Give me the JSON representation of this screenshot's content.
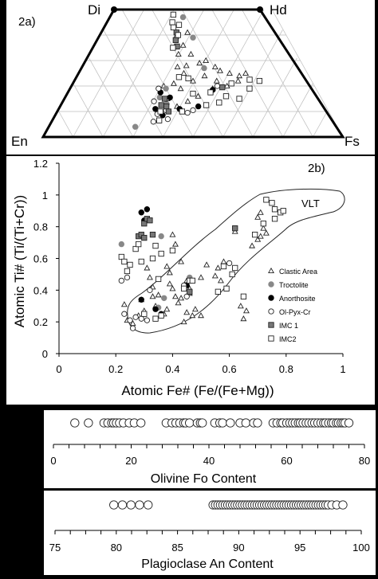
{
  "chart_data": [
    {
      "type": "scatter",
      "title": "2a)",
      "ternary_vertices": {
        "top_left": "Di",
        "top_right": "Hd",
        "bottom_left": "En",
        "bottom_right": "Fs"
      },
      "grid": true,
      "note": "Pyroxene quadrilateral; points given as Fe# (x) and Wo-axis fraction (y, 0 = En-Fs base, 1 = Di-Hd top)",
      "series": [
        {
          "name": "Clastic Area",
          "marker": "triangle",
          "points": [
            [
              0.45,
              0.72
            ],
            [
              0.49,
              0.65
            ],
            [
              0.53,
              0.58
            ],
            [
              0.56,
              0.6
            ],
            [
              0.6,
              0.55
            ],
            [
              0.43,
              0.55
            ],
            [
              0.46,
              0.5
            ],
            [
              0.42,
              0.42
            ],
            [
              0.45,
              0.38
            ],
            [
              0.62,
              0.52
            ],
            [
              0.66,
              0.5
            ],
            [
              0.7,
              0.48
            ],
            [
              0.73,
              0.5
            ],
            [
              0.69,
              0.44
            ],
            [
              0.64,
              0.4
            ],
            [
              0.58,
              0.38
            ],
            [
              0.52,
              0.32
            ],
            [
              0.48,
              0.28
            ],
            [
              0.44,
              0.24
            ],
            [
              0.4,
              0.3
            ],
            [
              0.38,
              0.4
            ],
            [
              0.55,
              0.48
            ],
            [
              0.6,
              0.44
            ],
            [
              0.5,
              0.44
            ],
            [
              0.47,
              0.56
            ],
            [
              0.43,
              0.65
            ],
            [
              0.41,
              0.79
            ],
            [
              0.47,
              0.82
            ]
          ]
        },
        {
          "name": "Troctolite",
          "marker": "grey-circle",
          "points": [
            [
              0.3,
              0.08
            ],
            [
              0.44,
              0.94
            ],
            [
              0.5,
              0.78
            ],
            [
              0.39,
              0.38
            ],
            [
              0.37,
              0.31
            ],
            [
              0.55,
              0.54
            ],
            [
              0.4,
              0.26
            ]
          ]
        },
        {
          "name": "Anorthosite",
          "marker": "filled-circle",
          "points": [
            [
              0.36,
              0.22
            ],
            [
              0.39,
              0.17
            ],
            [
              0.45,
              0.22
            ],
            [
              0.52,
              0.24
            ],
            [
              0.37,
              0.35
            ],
            [
              0.58,
              0.37
            ],
            [
              0.41,
              0.31
            ]
          ]
        },
        {
          "name": "Ol-Pyx-Cr",
          "marker": "open-circle",
          "points": [
            [
              0.35,
              0.28
            ],
            [
              0.37,
              0.18
            ],
            [
              0.4,
              0.21
            ],
            [
              0.36,
              0.38
            ],
            [
              0.48,
              0.19
            ],
            [
              0.6,
              0.4
            ],
            [
              0.36,
              0.12
            ],
            [
              0.5,
              0.21
            ],
            [
              0.41,
              0.14
            ]
          ]
        },
        {
          "name": "IMC 1",
          "marker": "grey-square",
          "points": [
            [
              0.41,
              0.82
            ],
            [
              0.41,
              0.76
            ],
            [
              0.42,
              0.71
            ],
            [
              0.39,
              0.3
            ],
            [
              0.4,
              0.24
            ],
            [
              0.41,
              0.2
            ],
            [
              0.38,
              0.25
            ],
            [
              0.62,
              0.39
            ]
          ]
        },
        {
          "name": "IMC2",
          "marker": "open-square",
          "points": [
            [
              0.38,
              0.96
            ],
            [
              0.38,
              0.9
            ],
            [
              0.39,
              0.86
            ],
            [
              0.42,
              0.88
            ],
            [
              0.42,
              0.8
            ],
            [
              0.4,
              0.7
            ],
            [
              0.44,
              0.47
            ],
            [
              0.48,
              0.46
            ],
            [
              0.57,
              0.35
            ],
            [
              0.63,
              0.32
            ],
            [
              0.66,
              0.42
            ],
            [
              0.74,
              0.45
            ],
            [
              0.78,
              0.44
            ],
            [
              0.6,
              0.27
            ],
            [
              0.55,
              0.25
            ],
            [
              0.5,
              0.34
            ],
            [
              0.38,
              0.2
            ],
            [
              0.38,
              0.13
            ],
            [
              0.46,
              0.2
            ],
            [
              0.68,
              0.3
            ],
            [
              0.73,
              0.38
            ]
          ]
        }
      ]
    },
    {
      "type": "scatter",
      "title": "2b)",
      "xlabel": "Atomic Fe# (Fe/(Fe+Mg))",
      "ylabel": "Atomic Ti# (Ti/(Ti+Cr))",
      "xlim": [
        0,
        1
      ],
      "ylim": [
        0,
        1.2
      ],
      "xticks": [
        "0",
        "0.2",
        "0.4",
        "0.6",
        "0.8",
        "1"
      ],
      "yticks": [
        "0",
        "0.2",
        "0.4",
        "0.6",
        "0.8",
        "1",
        "1.2"
      ],
      "annotations": [
        "VLT"
      ],
      "legend_position": "right",
      "series": [
        {
          "name": "Clastic Area",
          "marker": "triangle",
          "points": [
            [
              0.24,
              0.21
            ],
            [
              0.26,
              0.19
            ],
            [
              0.28,
              0.24
            ],
            [
              0.3,
              0.27
            ],
            [
              0.33,
              0.36
            ],
            [
              0.34,
              0.3
            ],
            [
              0.37,
              0.25
            ],
            [
              0.38,
              0.28
            ],
            [
              0.39,
              0.44
            ],
            [
              0.4,
              0.41
            ],
            [
              0.41,
              0.36
            ],
            [
              0.42,
              0.32
            ],
            [
              0.43,
              0.35
            ],
            [
              0.44,
              0.43
            ],
            [
              0.45,
              0.46
            ],
            [
              0.46,
              0.38
            ],
            [
              0.47,
              0.24
            ],
            [
              0.48,
              0.28
            ],
            [
              0.38,
              0.55
            ],
            [
              0.39,
              0.51
            ],
            [
              0.31,
              0.54
            ],
            [
              0.32,
              0.48
            ],
            [
              0.33,
              0.42
            ],
            [
              0.5,
              0.48
            ],
            [
              0.52,
              0.56
            ],
            [
              0.55,
              0.49
            ],
            [
              0.56,
              0.54
            ],
            [
              0.57,
              0.46
            ],
            [
              0.58,
              0.58
            ],
            [
              0.62,
              0.77
            ],
            [
              0.68,
              0.68
            ],
            [
              0.7,
              0.72
            ],
            [
              0.71,
              0.74
            ],
            [
              0.72,
              0.79
            ],
            [
              0.73,
              0.76
            ],
            [
              0.7,
              0.86
            ],
            [
              0.71,
              0.89
            ],
            [
              0.64,
              0.3
            ],
            [
              0.66,
              0.27
            ],
            [
              0.65,
              0.22
            ],
            [
              0.46,
              0.41
            ],
            [
              0.45,
              0.26
            ],
            [
              0.44,
              0.2
            ],
            [
              0.5,
              0.24
            ],
            [
              0.4,
              0.75
            ],
            [
              0.41,
              0.69
            ],
            [
              0.43,
              0.58
            ],
            [
              0.23,
              0.31
            ],
            [
              0.29,
              0.34
            ],
            [
              0.35,
              0.37
            ]
          ]
        },
        {
          "name": "Troctolite",
          "marker": "grey-circle",
          "points": [
            [
              0.22,
              0.69
            ],
            [
              0.36,
              0.74
            ],
            [
              0.46,
              0.48
            ],
            [
              0.35,
              0.29
            ],
            [
              0.37,
              0.35
            ],
            [
              0.62,
              0.79
            ]
          ]
        },
        {
          "name": "Anorthosite",
          "marker": "filled-circle",
          "points": [
            [
              0.29,
              0.89
            ],
            [
              0.31,
              0.91
            ],
            [
              0.3,
              0.84
            ],
            [
              0.29,
              0.34
            ],
            [
              0.34,
              0.28
            ],
            [
              0.36,
              0.25
            ],
            [
              0.45,
              0.43
            ]
          ]
        },
        {
          "name": "Ol-Pyx-Cr",
          "marker": "open-circle",
          "points": [
            [
              0.22,
              0.46
            ],
            [
              0.23,
              0.25
            ],
            [
              0.25,
              0.21
            ],
            [
              0.26,
              0.16
            ],
            [
              0.27,
              0.23
            ],
            [
              0.29,
              0.22
            ],
            [
              0.31,
              0.21
            ],
            [
              0.32,
              0.4
            ],
            [
              0.44,
              0.43
            ],
            [
              0.45,
              0.36
            ],
            [
              0.6,
              0.57
            ],
            [
              0.24,
              0.48
            ]
          ]
        },
        {
          "name": "IMC 1",
          "marker": "grey-square",
          "points": [
            [
              0.28,
              0.74
            ],
            [
              0.29,
              0.75
            ],
            [
              0.3,
              0.82
            ],
            [
              0.31,
              0.85
            ],
            [
              0.32,
              0.84
            ],
            [
              0.33,
              0.75
            ],
            [
              0.3,
              0.73
            ],
            [
              0.62,
              0.79
            ],
            [
              0.46,
              0.39
            ]
          ]
        },
        {
          "name": "IMC2",
          "marker": "open-square",
          "points": [
            [
              0.22,
              0.61
            ],
            [
              0.23,
              0.58
            ],
            [
              0.24,
              0.52
            ],
            [
              0.25,
              0.56
            ],
            [
              0.27,
              0.66
            ],
            [
              0.28,
              0.69
            ],
            [
              0.29,
              0.58
            ],
            [
              0.33,
              0.6
            ],
            [
              0.34,
              0.68
            ],
            [
              0.36,
              0.63
            ],
            [
              0.4,
              0.65
            ],
            [
              0.44,
              0.41
            ],
            [
              0.46,
              0.46
            ],
            [
              0.56,
              0.39
            ],
            [
              0.59,
              0.41
            ],
            [
              0.61,
              0.5
            ],
            [
              0.62,
              0.54
            ],
            [
              0.65,
              0.36
            ],
            [
              0.69,
              0.75
            ],
            [
              0.72,
              0.82
            ],
            [
              0.73,
              0.97
            ],
            [
              0.75,
              0.95
            ],
            [
              0.76,
              0.91
            ],
            [
              0.78,
              0.89
            ],
            [
              0.79,
              0.9
            ],
            [
              0.76,
              0.85
            ],
            [
              0.34,
              0.22
            ],
            [
              0.36,
              0.24
            ],
            [
              0.58,
              0.55
            ],
            [
              0.47,
              0.46
            ],
            [
              0.35,
              0.47
            ],
            [
              0.3,
              0.25
            ]
          ]
        }
      ]
    },
    {
      "type": "scatter",
      "title": "",
      "xlabel": "Olivine Fo Content",
      "xlim": [
        0,
        80
      ],
      "xticks": [
        "0",
        "20",
        "40",
        "60",
        "80"
      ],
      "marker": "open-circle",
      "values": [
        5.5,
        9.0,
        13.0,
        14.0,
        15.0,
        15.5,
        16.2,
        17.0,
        18.0,
        19.5,
        20.8,
        22.5,
        29.0,
        30.5,
        31.5,
        32.5,
        33.5,
        34.0,
        35.0,
        37.0,
        37.8,
        38.3,
        41.5,
        42.8,
        43.5,
        45.5,
        48.0,
        49.5,
        51.5,
        52.5,
        56.5,
        57.5,
        58.5,
        59.0,
        60.0,
        60.8,
        61.5,
        62.2,
        63.0,
        63.5,
        64.2,
        65.0,
        65.7,
        66.5,
        67.2,
        68.0,
        68.8,
        69.5,
        70.0,
        70.8,
        71.5,
        72.0,
        72.8,
        73.3,
        74.0,
        74.5,
        75.0,
        76.0
      ]
    },
    {
      "type": "scatter",
      "title": "",
      "xlabel": "Plagioclase An Content",
      "xlim": [
        75,
        100
      ],
      "xticks": [
        "75",
        "80",
        "85",
        "90",
        "95",
        "100"
      ],
      "marker": "open-circle",
      "values": [
        79.8,
        80.5,
        81.2,
        81.9,
        82.6,
        87.9,
        88.1,
        88.3,
        88.5,
        88.7,
        88.9,
        89.1,
        89.3,
        89.5,
        89.7,
        89.9,
        90.1,
        90.3,
        90.5,
        90.7,
        90.9,
        91.1,
        91.3,
        91.5,
        91.7,
        91.9,
        92.1,
        92.3,
        92.5,
        92.7,
        92.9,
        93.1,
        93.3,
        93.5,
        93.7,
        93.9,
        94.1,
        94.3,
        94.5,
        94.7,
        94.9,
        95.1,
        95.3,
        95.5,
        95.7,
        95.9,
        96.1,
        96.3,
        96.5,
        96.7,
        96.9,
        97.1,
        97.3,
        97.6,
        98.0,
        98.5
      ]
    }
  ],
  "panel_a": {
    "label": "2a)",
    "di": "Di",
    "hd": "Hd",
    "en": "En",
    "fs": "Fs"
  },
  "panel_b": {
    "label": "2b)",
    "vlt": "VLT",
    "xlabel": "Atomic Fe# (Fe/(Fe+Mg))",
    "ylabel": "Atomic Ti# (Ti/(Ti+Cr))",
    "legend": [
      "Clastic Area",
      "Troctolite",
      "Anorthosite",
      "Ol-Pyx-Cr",
      "IMC 1",
      "IMC2"
    ]
  },
  "panel_c": {
    "xlabel": "Olivine Fo Content"
  },
  "panel_d": {
    "xlabel": "Plagioclase An Content"
  }
}
